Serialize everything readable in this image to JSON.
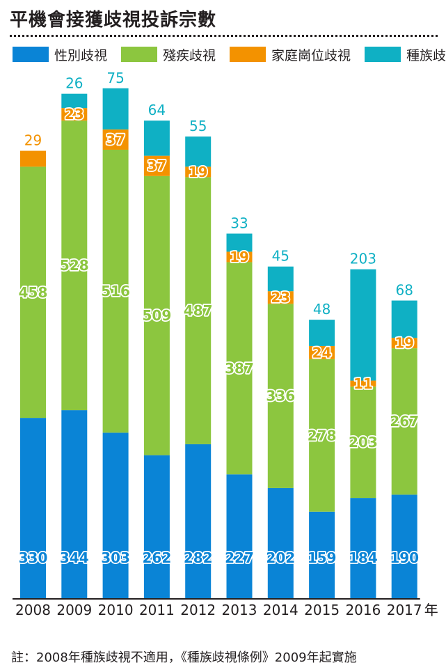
{
  "title": "平機會接獲歧視投訴宗數",
  "colors": {
    "sex": "#0a84d6",
    "disability": "#8cc63f",
    "family": "#f39200",
    "race": "#0fb0c4",
    "axis": "#231f20"
  },
  "note": "註：2008年種族歧視不適用，《種族歧視條例》2009年起實施",
  "chart_data": {
    "type": "bar",
    "stacked": true,
    "title": "平機會接獲歧視投訴宗數",
    "x_unit": "年",
    "categories": [
      "2008",
      "2009",
      "2010",
      "2011",
      "2012",
      "2013",
      "2014",
      "2015",
      "2016",
      "2017"
    ],
    "series": [
      {
        "name": "性別歧視",
        "color": "#0a84d6",
        "values": [
          330,
          344,
          303,
          262,
          282,
          227,
          202,
          159,
          184,
          190
        ]
      },
      {
        "name": "殘疾歧視",
        "color": "#8cc63f",
        "values": [
          458,
          528,
          516,
          509,
          487,
          387,
          336,
          278,
          203,
          267
        ]
      },
      {
        "name": "家庭崗位歧視",
        "color": "#f39200",
        "values": [
          29,
          23,
          37,
          37,
          19,
          19,
          23,
          24,
          11,
          19
        ]
      },
      {
        "name": "種族歧視",
        "color": "#0fb0c4",
        "values": [
          null,
          26,
          75,
          64,
          55,
          33,
          45,
          48,
          203,
          68
        ]
      }
    ],
    "legend_position": "top",
    "grid": false,
    "ylim": [
      0,
      965
    ]
  }
}
